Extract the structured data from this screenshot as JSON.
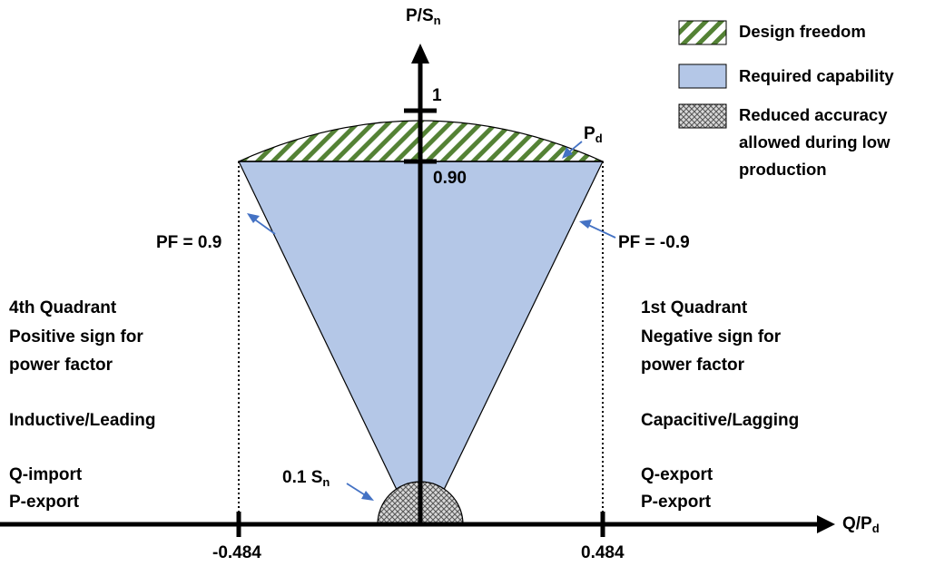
{
  "axes": {
    "y_label": "P/S",
    "y_label_sub": "n",
    "x_label": "Q/P",
    "x_label_sub": "d"
  },
  "ticks": {
    "y_top": "1",
    "y_pd": "0.90",
    "x_left": "-0.484",
    "x_right": "0.484"
  },
  "annotations": {
    "pd_label": "P",
    "pd_label_sub": "d",
    "pf_left": "PF = 0.9",
    "pf_right": "PF = -0.9",
    "low_label": "0.1 S",
    "low_label_sub": "n"
  },
  "legend": [
    {
      "label": "Design freedom",
      "pattern": "green-diagonal-hatch",
      "color": "#548235"
    },
    {
      "label": "Required capability",
      "pattern": "solid",
      "color": "#b4c7e7"
    },
    {
      "label": "Reduced accuracy allowed during low production",
      "lines": [
        "Reduced accuracy",
        "allowed during low",
        "production"
      ],
      "pattern": "grey-crosshatch",
      "color": "#808080"
    }
  ],
  "quadrants": {
    "left": {
      "lines": [
        "4th Quadrant",
        "Positive sign for",
        "power factor"
      ],
      "mode": "Inductive/Leading",
      "flow": [
        "Q-import",
        "P-export"
      ]
    },
    "right": {
      "lines": [
        "1st Quadrant",
        "Negative sign for",
        "power factor"
      ],
      "mode": "Capacitive/Lagging",
      "flow": [
        "Q-export",
        "P-export"
      ]
    }
  },
  "colors": {
    "required_fill": "#b4c7e7",
    "freedom_green": "#548235",
    "arrow_blue": "#4472c4",
    "low_grey": "#7f7f7f"
  }
}
